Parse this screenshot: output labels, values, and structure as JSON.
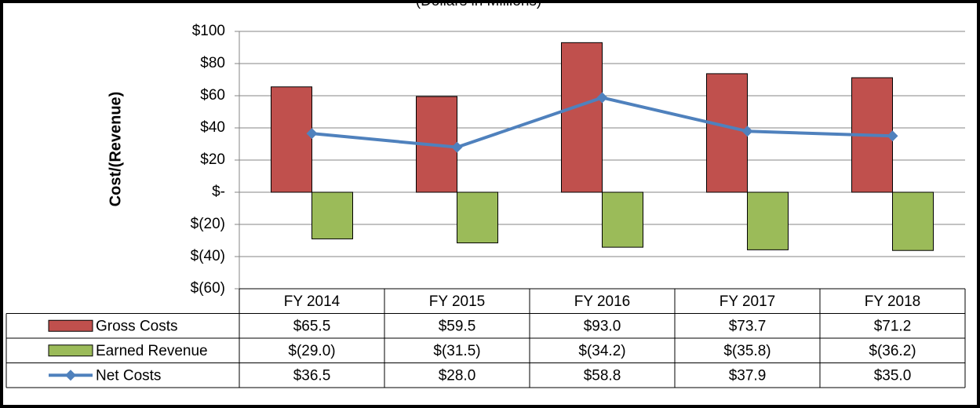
{
  "chart_data": {
    "type": "bar",
    "subtitle": "(Dollars in Millions)",
    "y_label": "Cost/(Revenue)",
    "categories": [
      "FY 2014",
      "FY 2015",
      "FY 2016",
      "FY 2017",
      "FY 2018"
    ],
    "series": [
      {
        "name": "Gross Costs",
        "color": "#c0504d",
        "values": [
          65.5,
          59.5,
          93.0,
          73.7,
          71.2
        ],
        "value_labels": [
          "$65.5",
          "$59.5",
          "$93.0",
          "$73.7",
          "$71.2"
        ]
      },
      {
        "name": "Earned Revenue",
        "color": "#9bbb59",
        "values": [
          -29.0,
          -31.5,
          -34.2,
          -35.8,
          -36.2
        ],
        "value_labels": [
          "$(29.0)",
          "$(31.5)",
          "$(34.2)",
          "$(35.8)",
          "$(36.2)"
        ]
      },
      {
        "name": "Net Costs",
        "type": "line",
        "color": "#4f81bd",
        "values": [
          36.5,
          28.0,
          58.8,
          37.9,
          35.0
        ],
        "value_labels": [
          "$36.5",
          "$28.0",
          "$58.8",
          "$37.9",
          "$35.0"
        ]
      }
    ],
    "ylim": [
      -60,
      100
    ],
    "yticks": [
      {
        "value": -60,
        "label": "$(60)"
      },
      {
        "value": -40,
        "label": "$(40)"
      },
      {
        "value": -20,
        "label": "$(20)"
      },
      {
        "value": 0,
        "label": "$-"
      },
      {
        "value": 20,
        "label": "$20"
      },
      {
        "value": 40,
        "label": "$40"
      },
      {
        "value": 60,
        "label": "$60"
      },
      {
        "value": 80,
        "label": "$80"
      },
      {
        "value": 100,
        "label": "$100"
      }
    ],
    "grid": true
  }
}
